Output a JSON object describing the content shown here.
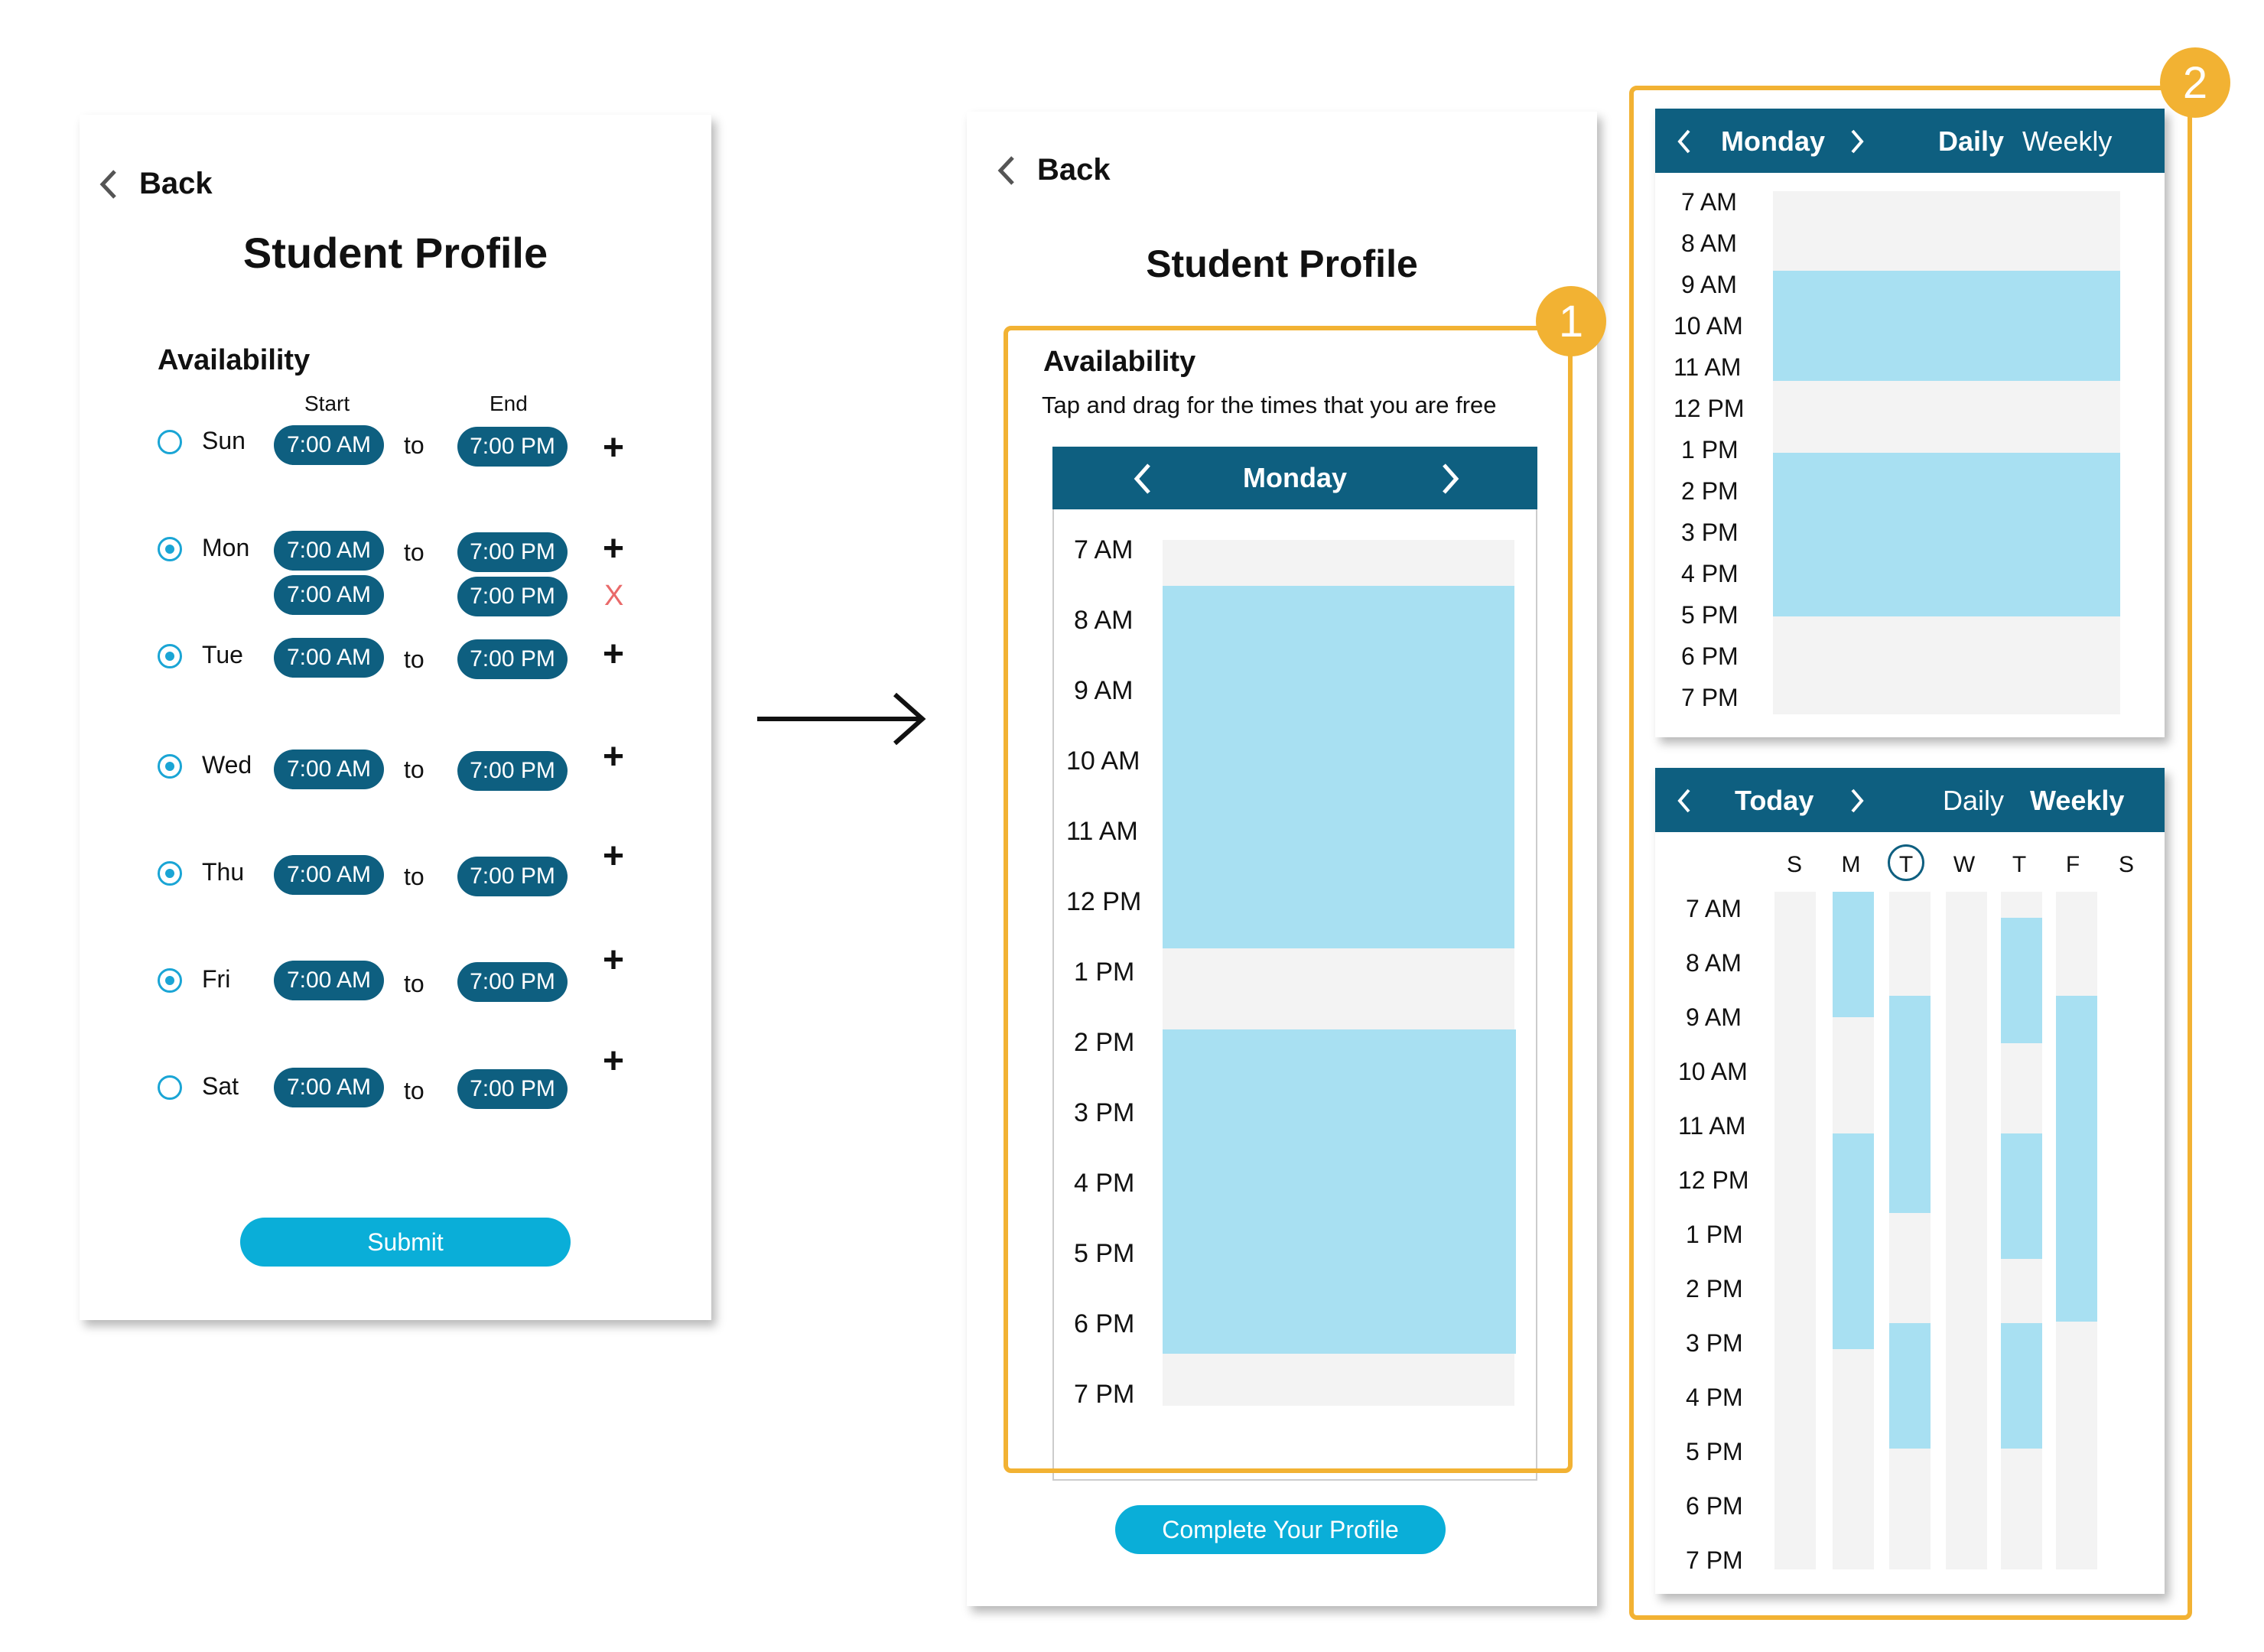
{
  "colors": {
    "accent": "#0e5f80",
    "button": "#0aaed8",
    "free": "#a8e0f2",
    "empty": "#f3f3f3",
    "highlight": "#f2b233",
    "remove": "#e96a6a"
  },
  "left": {
    "back": "Back",
    "title": "Student Profile",
    "section": "Availability",
    "start_header": "Start",
    "end_header": "End",
    "to": "to",
    "days": [
      {
        "day": "Sun",
        "selected": false,
        "start": "7:00 AM",
        "end": "7:00 PM"
      },
      {
        "day": "Mon",
        "selected": true,
        "start": "7:00 AM",
        "end": "7:00 PM",
        "start2": "7:00 AM",
        "end2": "7:00 PM"
      },
      {
        "day": "Tue",
        "selected": true,
        "start": "7:00 AM",
        "end": "7:00 PM"
      },
      {
        "day": "Wed",
        "selected": true,
        "start": "7:00 AM",
        "end": "7:00 PM"
      },
      {
        "day": "Thu",
        "selected": true,
        "start": "7:00 AM",
        "end": "7:00 PM"
      },
      {
        "day": "Fri",
        "selected": true,
        "start": "7:00 AM",
        "end": "7:00 PM"
      },
      {
        "day": "Sat",
        "selected": false,
        "start": "7:00 AM",
        "end": "7:00 PM"
      }
    ],
    "add_symbol": "+",
    "remove_symbol": "X",
    "submit": "Submit"
  },
  "middle": {
    "back": "Back",
    "title": "Student Profile",
    "section": "Availability",
    "instruction": "Tap and drag for the times that you are free",
    "day": "Monday",
    "times": [
      "7 AM",
      "8 AM",
      "9 AM",
      "10 AM",
      "11 AM",
      "12 PM",
      "1 PM",
      "2 PM",
      "3 PM",
      "4 PM",
      "5 PM",
      "6 PM",
      "7 PM"
    ],
    "complete": "Complete Your Profile",
    "badge": "1"
  },
  "daily": {
    "day": "Monday",
    "tab_daily": "Daily",
    "tab_weekly": "Weekly",
    "active_tab": "Daily",
    "times": [
      "7 AM",
      "8 AM",
      "9 AM",
      "10 AM",
      "11 AM",
      "12 PM",
      "1 PM",
      "2 PM",
      "3 PM",
      "4 PM",
      "5 PM",
      "6 PM",
      "7 PM"
    ]
  },
  "weekly": {
    "day": "Today",
    "tab_daily": "Daily",
    "tab_weekly": "Weekly",
    "active_tab": "Weekly",
    "days": [
      "S",
      "M",
      "T",
      "W",
      "T",
      "F",
      "S"
    ],
    "today_index": 2,
    "times": [
      "7 AM",
      "8 AM",
      "9 AM",
      "10 AM",
      "11 AM",
      "12 PM",
      "1 PM",
      "2 PM",
      "3 PM",
      "4 PM",
      "5 PM",
      "6 PM",
      "7 PM"
    ]
  },
  "badge2": "2"
}
